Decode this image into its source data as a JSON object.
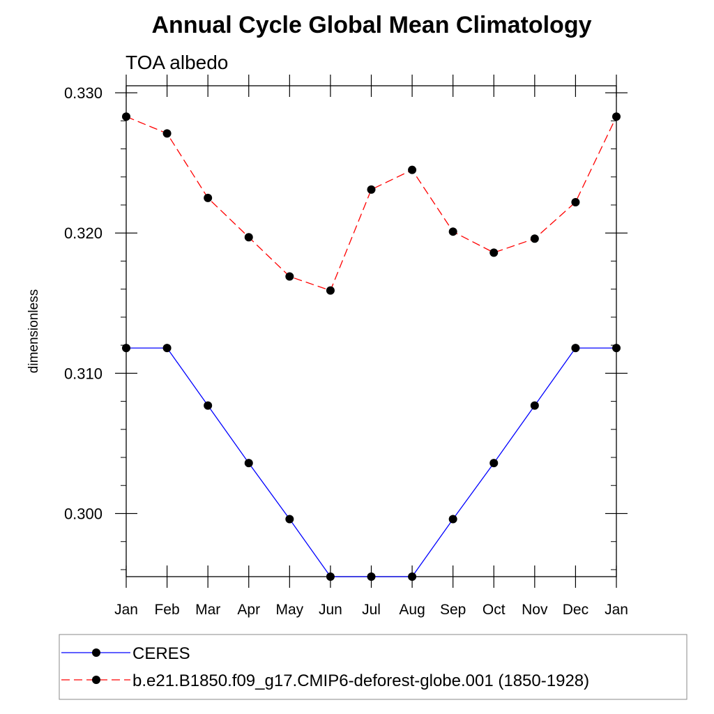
{
  "chart_data": {
    "type": "line",
    "title": "Annual Cycle Global Mean Climatology",
    "subtitle": "TOA albedo",
    "xlabel": "",
    "ylabel": "dimensionless",
    "categories": [
      "Jan",
      "Feb",
      "Mar",
      "Apr",
      "May",
      "Jun",
      "Jul",
      "Aug",
      "Sep",
      "Oct",
      "Nov",
      "Dec",
      "Jan"
    ],
    "ylim": [
      0.2955,
      0.3305
    ],
    "yticks": [
      "0.300",
      "0.310",
      "0.320",
      "0.330"
    ],
    "ytick_values": [
      0.3,
      0.31,
      0.32,
      0.33
    ],
    "series": [
      {
        "name": "CERES",
        "style": "solid",
        "color": "#0000ff",
        "values": [
          0.3118,
          0.3118,
          0.3077,
          0.3036,
          0.2996,
          0.2955,
          0.2955,
          0.2955,
          0.2996,
          0.3036,
          0.3077,
          0.3118,
          0.3118
        ]
      },
      {
        "name": "b.e21.B1850.f09_g17.CMIP6-deforest-globe.001 (1850-1928)",
        "style": "dashed",
        "color": "#ff0000",
        "values": [
          0.3283,
          0.3271,
          0.3225,
          0.3197,
          0.3169,
          0.3159,
          0.3231,
          0.3245,
          0.3201,
          0.3186,
          0.3196,
          0.3222,
          0.3283
        ]
      }
    ],
    "legend_position": "bottom"
  }
}
